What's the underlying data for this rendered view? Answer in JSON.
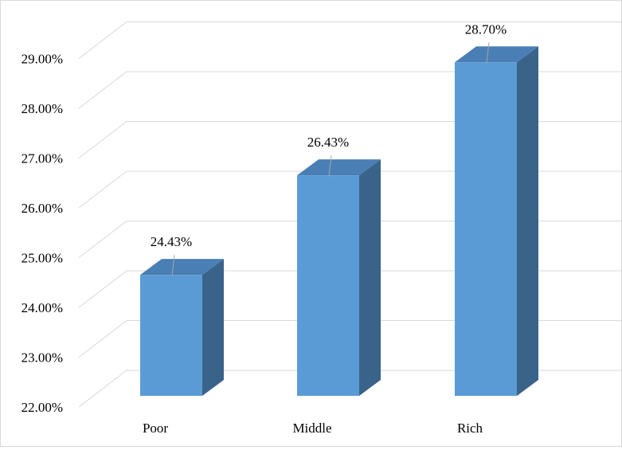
{
  "chart_data": {
    "type": "bar",
    "style": "3d-column",
    "categories": [
      "Poor",
      "Middle",
      "Rich"
    ],
    "values": [
      24.43,
      26.43,
      28.7
    ],
    "data_labels": [
      "24.43%",
      "26.43%",
      "28.70%"
    ],
    "y_ticks": [
      22,
      23,
      24,
      25,
      26,
      27,
      28,
      29
    ],
    "y_tick_labels": [
      "22.00%",
      "23.00%",
      "24.00%",
      "25.00%",
      "26.00%",
      "27.00%",
      "28.00%",
      "29.00%"
    ],
    "ylim": [
      22,
      29
    ],
    "grid": true,
    "legend": "none",
    "colors": {
      "front": "#5B9BD5",
      "top": "#4A7FB5",
      "side": "#3A6389",
      "grid": "#d9d9d9",
      "leader": "#a6a6a6"
    }
  }
}
